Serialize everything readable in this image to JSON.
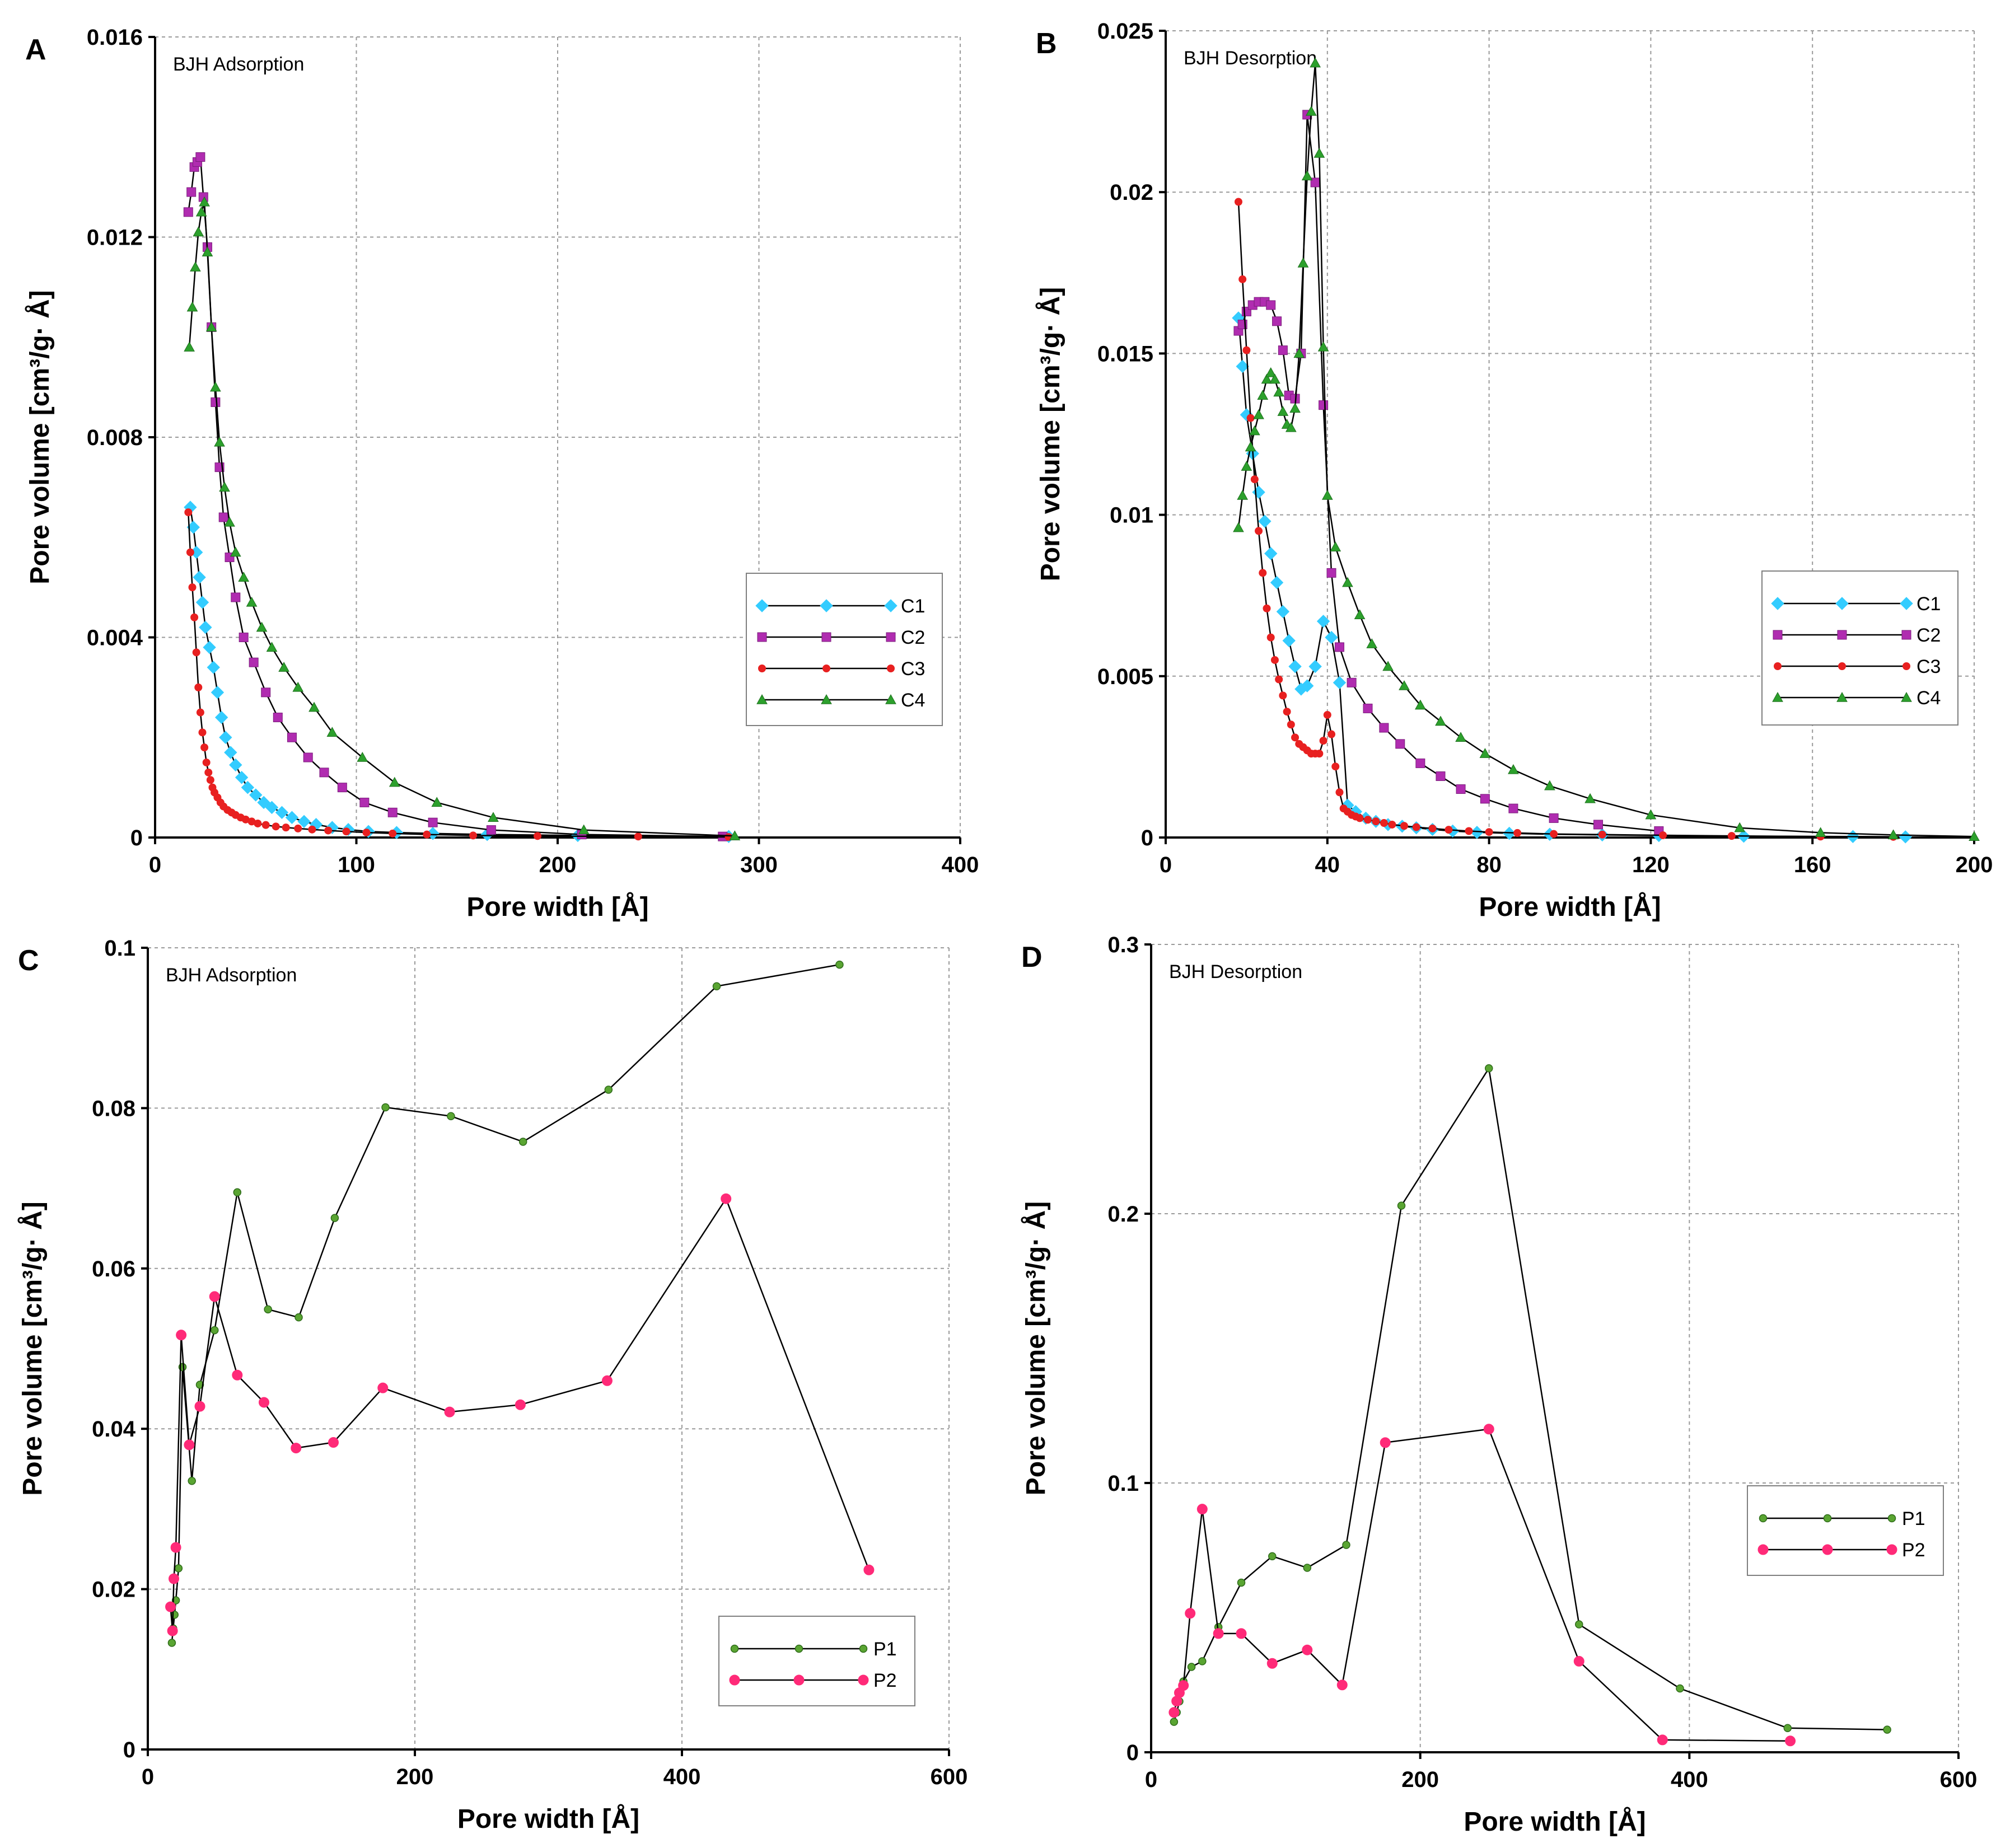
{
  "chart_data": [
    {
      "id": "A",
      "type": "line",
      "panel_label": "A",
      "annotation": "BJH Adsorption",
      "xlabel": "Pore width [Å]",
      "ylabel": "Pore volume [cm³/g· Å]",
      "xlim": [
        0,
        400
      ],
      "ylim": [
        0,
        0.016
      ],
      "xticks": [
        0,
        100,
        200,
        300,
        400
      ],
      "yticks": [
        0,
        0.004,
        0.008,
        0.012,
        0.016
      ],
      "xtick_labels": [
        "0",
        "100",
        "200",
        "300",
        "400"
      ],
      "ytick_labels": [
        "0",
        "0.004",
        "0.008",
        "0.012",
        "0.016"
      ],
      "grid": true,
      "legend_position": "right",
      "series": [
        {
          "name": "C1",
          "color": "#33ccff",
          "marker": "diamond",
          "x": [
            17.5,
            19,
            20.5,
            22,
            23.5,
            25,
            27,
            29,
            31,
            33,
            35,
            37.5,
            40,
            43,
            46,
            50,
            54,
            58,
            63,
            68,
            74,
            80,
            88,
            96,
            106,
            120,
            138,
            165,
            210,
            285
          ],
          "y": [
            0.0066,
            0.0062,
            0.0057,
            0.0052,
            0.0047,
            0.0042,
            0.0038,
            0.0034,
            0.0029,
            0.0024,
            0.002,
            0.0017,
            0.00145,
            0.0012,
            0.001,
            0.00085,
            0.0007,
            0.0006,
            0.0005,
            0.0004,
            0.00032,
            0.00026,
            0.0002,
            0.00016,
            0.00012,
            0.0001,
            8e-05,
            6e-05,
            4e-05,
            2e-05
          ]
        },
        {
          "name": "C2",
          "color": "#b02cb0",
          "marker": "square",
          "x": [
            16.5,
            18,
            19.5,
            21,
            22.5,
            24,
            26,
            28,
            30,
            32,
            34,
            37,
            40,
            44,
            49,
            55,
            61,
            68,
            76,
            84,
            93,
            104,
            118,
            138,
            167,
            212,
            282
          ],
          "y": [
            0.0125,
            0.0129,
            0.0134,
            0.0135,
            0.0136,
            0.0128,
            0.0118,
            0.0102,
            0.0087,
            0.0074,
            0.0064,
            0.0056,
            0.0048,
            0.004,
            0.0035,
            0.0029,
            0.0024,
            0.002,
            0.0016,
            0.0013,
            0.001,
            0.0007,
            0.0005,
            0.0003,
            0.00015,
            6e-05,
            2e-05
          ]
        },
        {
          "name": "C3",
          "color": "#e82020",
          "marker": "circle",
          "x": [
            16.5,
            17.5,
            18.5,
            19.5,
            20.5,
            21.5,
            22.5,
            23.5,
            24.5,
            25.5,
            26.5,
            27.5,
            28.5,
            29.5,
            31,
            32.5,
            34,
            36,
            38,
            40,
            42.5,
            45,
            48,
            51,
            55,
            60,
            65,
            71,
            78,
            86,
            95,
            105,
            118,
            135,
            158,
            190,
            240,
            285
          ],
          "y": [
            0.0065,
            0.0057,
            0.005,
            0.0044,
            0.0037,
            0.003,
            0.0025,
            0.0021,
            0.0018,
            0.0015,
            0.0013,
            0.00115,
            0.001,
            0.0009,
            0.0008,
            0.0007,
            0.00062,
            0.00055,
            0.0005,
            0.00045,
            0.0004,
            0.00036,
            0.00032,
            0.00028,
            0.00025,
            0.00022,
            0.0002,
            0.00018,
            0.00016,
            0.00014,
            0.00012,
            0.0001,
            8e-05,
            6e-05,
            4e-05,
            3e-05,
            2e-05,
            1e-05
          ]
        },
        {
          "name": "C4",
          "color": "#2ca02c",
          "marker": "triangle",
          "x": [
            17,
            18.5,
            20,
            21.5,
            23,
            24.5,
            26,
            28,
            30,
            32,
            34.5,
            37,
            40,
            44,
            48,
            53,
            58,
            64,
            71,
            79,
            88,
            103,
            119,
            140,
            168,
            213,
            288
          ],
          "y": [
            0.0098,
            0.0106,
            0.0114,
            0.0121,
            0.0125,
            0.0127,
            0.0117,
            0.0102,
            0.009,
            0.0079,
            0.007,
            0.0063,
            0.0057,
            0.0052,
            0.0047,
            0.0042,
            0.0038,
            0.0034,
            0.003,
            0.0026,
            0.0021,
            0.0016,
            0.0011,
            0.0007,
            0.0004,
            0.00015,
            3e-05
          ]
        }
      ]
    },
    {
      "id": "B",
      "type": "line",
      "panel_label": "B",
      "annotation": "BJH Desorption",
      "xlabel": "Pore width [Å]",
      "ylabel": "Pore volume [cm³/g· Å]",
      "xlim": [
        0,
        200
      ],
      "ylim": [
        0,
        0.025
      ],
      "xticks": [
        0,
        40,
        80,
        120,
        160,
        200
      ],
      "yticks": [
        0,
        0.005,
        0.01,
        0.015,
        0.02,
        0.025
      ],
      "xtick_labels": [
        "0",
        "40",
        "80",
        "120",
        "160",
        "200"
      ],
      "ytick_labels": [
        "0",
        "0.005",
        "0.01",
        "0.015",
        "0.02",
        "0.025"
      ],
      "grid": true,
      "legend_position": "right",
      "series": [
        {
          "name": "C1",
          "color": "#33ccff",
          "marker": "diamond",
          "x": [
            18,
            19,
            20,
            21.5,
            23,
            24.5,
            26,
            27.5,
            29,
            30.5,
            32,
            33.5,
            35,
            37,
            39,
            41,
            43,
            45,
            47,
            49.5,
            52,
            55,
            58.5,
            62,
            66,
            71,
            77,
            85,
            95,
            108,
            122,
            143,
            170,
            183
          ],
          "y": [
            0.0161,
            0.0146,
            0.0131,
            0.0119,
            0.0107,
            0.0098,
            0.0088,
            0.0079,
            0.007,
            0.0061,
            0.0053,
            0.0046,
            0.0047,
            0.0053,
            0.0067,
            0.0062,
            0.0048,
            0.001,
            0.0008,
            0.0006,
            0.0005,
            0.0004,
            0.00035,
            0.0003,
            0.00025,
            0.0002,
            0.00016,
            0.00013,
            0.0001,
            8e-05,
            6e-05,
            4e-05,
            3e-05,
            2e-05
          ]
        },
        {
          "name": "C2",
          "color": "#b02cb0",
          "marker": "square",
          "x": [
            18,
            19,
            20,
            21.5,
            23,
            24.5,
            26,
            27.5,
            29,
            30.5,
            32,
            33.5,
            35,
            37,
            39,
            41,
            43,
            46,
            50,
            54,
            58,
            63,
            68,
            73,
            79,
            86,
            96,
            107,
            122
          ],
          "y": [
            0.0157,
            0.0159,
            0.0163,
            0.0165,
            0.0166,
            0.0166,
            0.0165,
            0.016,
            0.0151,
            0.0137,
            0.0136,
            0.015,
            0.0224,
            0.0203,
            0.0134,
            0.0082,
            0.0059,
            0.0048,
            0.004,
            0.0034,
            0.0029,
            0.0023,
            0.0019,
            0.0015,
            0.0012,
            0.0009,
            0.0006,
            0.0004,
            0.0002
          ]
        },
        {
          "name": "C3",
          "color": "#e82020",
          "marker": "circle",
          "x": [
            18,
            19,
            20,
            21,
            22,
            23,
            24,
            25,
            26,
            27,
            28,
            29,
            30,
            31,
            32,
            33,
            34,
            35,
            36,
            37,
            38,
            39,
            40,
            41,
            42,
            43,
            44,
            45,
            46,
            47,
            48,
            50,
            52,
            54,
            56,
            59,
            62,
            66,
            70,
            75,
            80,
            87,
            96,
            108,
            123,
            140,
            162,
            180
          ],
          "y": [
            0.0197,
            0.0173,
            0.0151,
            0.013,
            0.0111,
            0.0095,
            0.0082,
            0.0071,
            0.0062,
            0.0055,
            0.0049,
            0.0044,
            0.0039,
            0.0035,
            0.0031,
            0.0029,
            0.0028,
            0.0027,
            0.0026,
            0.0026,
            0.0026,
            0.003,
            0.0038,
            0.0032,
            0.0022,
            0.0014,
            0.0009,
            0.0008,
            0.0007,
            0.00065,
            0.0006,
            0.00055,
            0.0005,
            0.00045,
            0.0004,
            0.00036,
            0.00032,
            0.00028,
            0.00024,
            0.0002,
            0.00017,
            0.00014,
            0.00011,
            9e-05,
            7e-05,
            5e-05,
            3e-05,
            2e-05
          ]
        },
        {
          "name": "C4",
          "color": "#2ca02c",
          "marker": "triangle",
          "x": [
            18,
            19,
            20,
            21,
            22,
            23,
            24,
            25,
            26,
            27,
            28,
            29,
            30,
            31,
            32,
            33,
            34,
            35,
            36,
            37,
            38,
            39,
            40,
            42,
            45,
            48,
            51,
            55,
            59,
            63,
            68,
            73,
            79,
            86,
            95,
            105,
            120,
            142,
            162,
            180,
            200
          ],
          "y": [
            0.0096,
            0.0106,
            0.0115,
            0.0121,
            0.0126,
            0.0131,
            0.0137,
            0.0142,
            0.0144,
            0.0142,
            0.0138,
            0.0132,
            0.0128,
            0.0127,
            0.0133,
            0.015,
            0.0178,
            0.0205,
            0.0225,
            0.024,
            0.0212,
            0.0152,
            0.0106,
            0.009,
            0.0079,
            0.0069,
            0.006,
            0.0053,
            0.0047,
            0.0041,
            0.0036,
            0.0031,
            0.0026,
            0.0021,
            0.0016,
            0.0012,
            0.0007,
            0.0003,
            0.00015,
            8e-05,
            3e-05
          ]
        }
      ]
    },
    {
      "id": "C",
      "type": "line",
      "panel_label": "C",
      "annotation": "BJH Adsorption",
      "xlabel": "Pore width [Å]",
      "ylabel": "Pore volume [cm³/g· Å]",
      "xlim": [
        0,
        600
      ],
      "ylim": [
        0,
        0.1
      ],
      "xticks": [
        0,
        200,
        400,
        600
      ],
      "yticks": [
        0,
        0.02,
        0.04,
        0.06,
        0.08,
        0.1
      ],
      "xtick_labels": [
        "0",
        "200",
        "400",
        "600"
      ],
      "ytick_labels": [
        "0",
        "0.02",
        "0.04",
        "0.06",
        "0.08",
        "0.1"
      ],
      "grid": true,
      "legend_position": "bottom-right",
      "series": [
        {
          "name": "P1",
          "color": "#5aa532",
          "marker": "circle-small",
          "x": [
            18,
            19,
            20,
            21,
            23,
            26,
            33,
            39,
            50,
            67,
            90,
            113,
            140,
            178,
            227,
            281,
            345,
            426,
            518
          ],
          "y": [
            0.0133,
            0.0151,
            0.0168,
            0.0186,
            0.0226,
            0.0477,
            0.0335,
            0.0455,
            0.0523,
            0.0695,
            0.0549,
            0.0539,
            0.0663,
            0.0801,
            0.079,
            0.0758,
            0.0823,
            0.0952,
            0.0979
          ]
        },
        {
          "name": "P2",
          "color": "#ff2a78",
          "marker": "circle",
          "x": [
            17,
            18.5,
            19.5,
            21,
            25,
            31,
            39,
            50,
            67,
            87,
            111,
            139,
            176,
            226,
            279,
            344,
            433,
            540
          ],
          "y": [
            0.0178,
            0.0148,
            0.0213,
            0.0252,
            0.0517,
            0.038,
            0.0428,
            0.0565,
            0.0467,
            0.0433,
            0.0376,
            0.0383,
            0.0451,
            0.0421,
            0.043,
            0.046,
            0.0687,
            0.0224
          ]
        }
      ]
    },
    {
      "id": "D",
      "type": "line",
      "panel_label": "D",
      "annotation": "BJH Desorption",
      "xlabel": "Pore width [Å]",
      "ylabel": "Pore volume [cm³/g· Å]",
      "xlim": [
        0,
        600
      ],
      "ylim": [
        0,
        0.3
      ],
      "xticks": [
        0,
        200,
        400,
        600
      ],
      "yticks": [
        0,
        0.1,
        0.2,
        0.3
      ],
      "xtick_labels": [
        "0",
        "200",
        "400",
        "600"
      ],
      "ytick_labels": [
        "0",
        "0.1",
        "0.2",
        "0.3"
      ],
      "grid": true,
      "legend_position": "right",
      "series": [
        {
          "name": "P1",
          "color": "#5aa532",
          "marker": "circle-small",
          "x": [
            17,
            19,
            21,
            24,
            30,
            38,
            50,
            67,
            90,
            116,
            145,
            186,
            251,
            318,
            393,
            473,
            547
          ],
          "y": [
            0.0113,
            0.0148,
            0.0189,
            0.0263,
            0.0317,
            0.0338,
            0.0465,
            0.063,
            0.0728,
            0.0685,
            0.077,
            0.203,
            0.254,
            0.0475,
            0.0237,
            0.009,
            0.0084
          ]
        },
        {
          "name": "P2",
          "color": "#ff2a78",
          "marker": "circle",
          "x": [
            17,
            19,
            21,
            24,
            29,
            38,
            50,
            67,
            90,
            116,
            142,
            174,
            251,
            318,
            380,
            475
          ],
          "y": [
            0.0148,
            0.019,
            0.0221,
            0.0248,
            0.0516,
            0.0903,
            0.0441,
            0.0441,
            0.033,
            0.038,
            0.025,
            0.115,
            0.12,
            0.0338,
            0.0046,
            0.0042
          ]
        }
      ]
    }
  ]
}
